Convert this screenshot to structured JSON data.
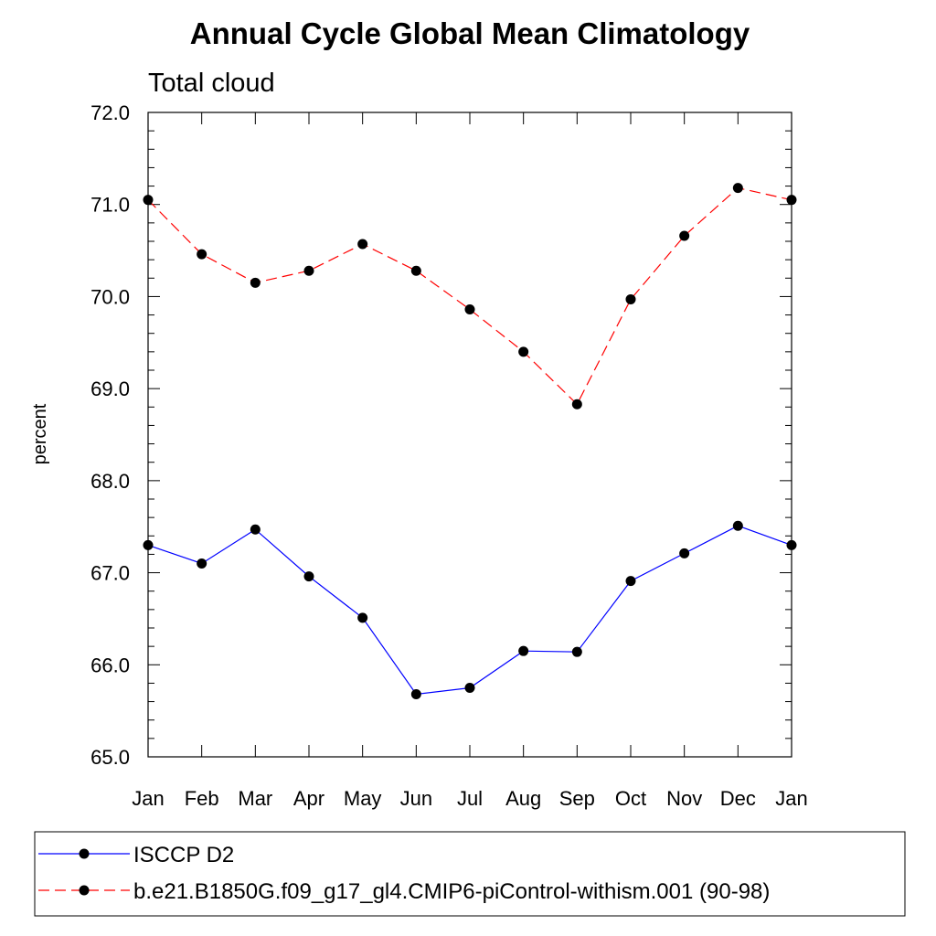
{
  "chart_data": {
    "type": "line",
    "title": "Annual Cycle Global Mean Climatology",
    "subtitle": "Total cloud",
    "ylabel": "percent",
    "xlabel": "",
    "ylim": [
      65.0,
      72.0
    ],
    "yticks": [
      65.0,
      66.0,
      67.0,
      68.0,
      69.0,
      70.0,
      71.0,
      72.0
    ],
    "ytick_labels": [
      "65.0",
      "66.0",
      "67.0",
      "68.0",
      "69.0",
      "70.0",
      "71.0",
      "72.0"
    ],
    "categories": [
      "Jan",
      "Feb",
      "Mar",
      "Apr",
      "May",
      "Jun",
      "Jul",
      "Aug",
      "Sep",
      "Oct",
      "Nov",
      "Dec",
      "Jan"
    ],
    "grid": false,
    "legend_position": "bottom",
    "series": [
      {
        "name": "ISCCP D2",
        "color": "#0000ff",
        "line_style": "solid",
        "marker": "filled-circle",
        "values": [
          67.3,
          67.1,
          67.47,
          66.96,
          66.51,
          65.68,
          65.75,
          66.15,
          66.14,
          66.91,
          67.21,
          67.51,
          67.3
        ]
      },
      {
        "name": "b.e21.B1850G.f09_g17_gl4.CMIP6-piControl-withism.001 (90-98)",
        "color": "#ff0000",
        "line_style": "dashed",
        "marker": "filled-circle",
        "values": [
          71.05,
          70.46,
          70.15,
          70.28,
          70.57,
          70.28,
          69.86,
          69.4,
          68.83,
          69.97,
          70.66,
          71.18,
          71.05
        ]
      }
    ]
  }
}
